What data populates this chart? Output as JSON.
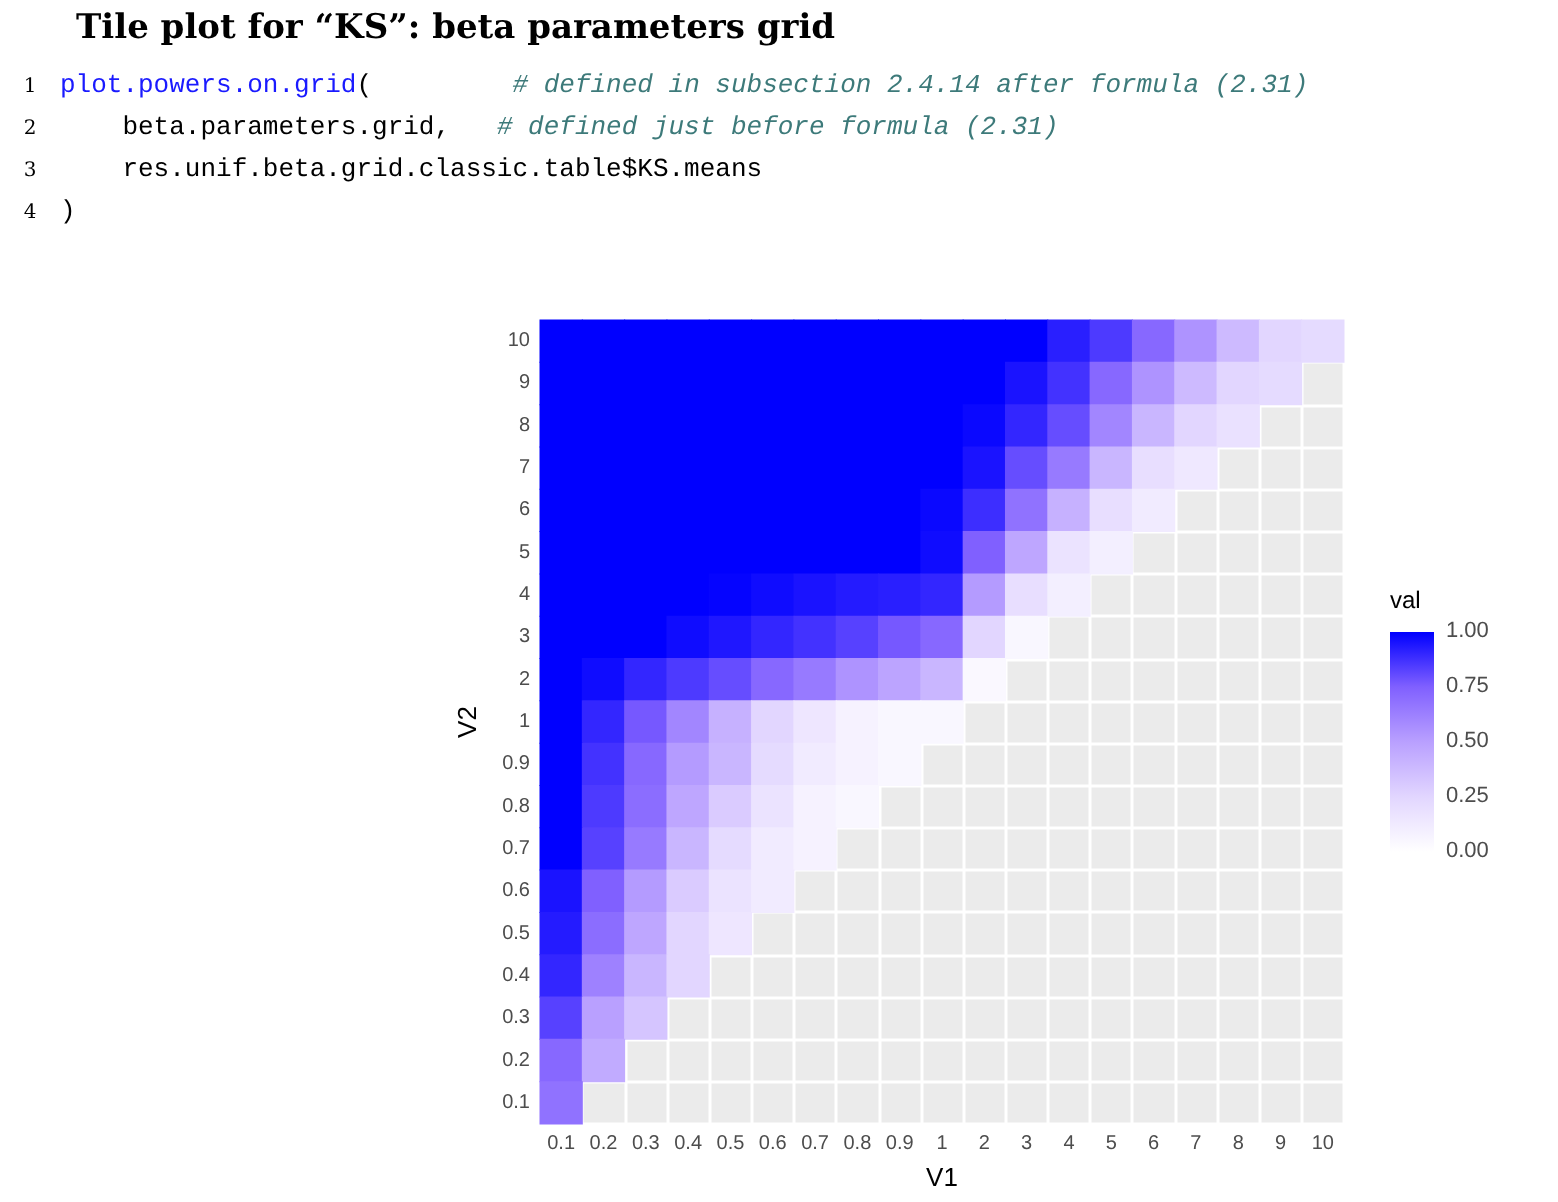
{
  "chart_data": {
    "type": "heatmap",
    "title": "Tile plot for “KS”: beta parameters grid",
    "annotations": [
      "1 plot.powers.on.grid(         # defined in subsection 2.4.14 after formula (2.31)",
      "2     beta.parameters.grid,   # defined just before formula (2.31)",
      "3     res.unif.beta.grid.classic.table$KS.means",
      "4 )"
    ],
    "xlabel": "V1",
    "ylabel": "V2",
    "legend_title": "val",
    "grid": true,
    "categories": [
      "0.1",
      "0.2",
      "0.3",
      "0.4",
      "0.5",
      "0.6",
      "0.7",
      "0.8",
      "0.9",
      "1",
      "2",
      "3",
      "4",
      "5",
      "6",
      "7",
      "8",
      "9",
      "10"
    ],
    "y_categories": [
      "10",
      "9",
      "8",
      "7",
      "6",
      "5",
      "4",
      "3",
      "2",
      "1",
      "0.9",
      "0.8",
      "0.7",
      "0.6",
      "0.5",
      "0.4",
      "0.3",
      "0.2",
      "0.1"
    ],
    "cells": [
      [
        1,
        1,
        1,
        1,
        1,
        1,
        1,
        1,
        1,
        1,
        1,
        1,
        0.92,
        0.85,
        0.72,
        0.55,
        0.38,
        0.25,
        0.22
      ],
      [
        1,
        1,
        1,
        1,
        1,
        1,
        1,
        1,
        1,
        1,
        1,
        0.95,
        0.87,
        0.72,
        0.55,
        0.38,
        0.25,
        0.22,
        null
      ],
      [
        1,
        1,
        1,
        1,
        1,
        1,
        1,
        1,
        1,
        1,
        0.98,
        0.9,
        0.8,
        0.6,
        0.4,
        0.25,
        0.18,
        null,
        null
      ],
      [
        1,
        1,
        1,
        1,
        1,
        1,
        1,
        1,
        1,
        1,
        0.95,
        0.8,
        0.65,
        0.4,
        0.2,
        0.14,
        null,
        null,
        null
      ],
      [
        1,
        1,
        1,
        1,
        1,
        1,
        1,
        1,
        1,
        0.98,
        0.88,
        0.68,
        0.42,
        0.2,
        0.12,
        null,
        null,
        null,
        null
      ],
      [
        1,
        1,
        1,
        1,
        1,
        1,
        1,
        1,
        1,
        0.97,
        0.75,
        0.47,
        0.17,
        0.1,
        null,
        null,
        null,
        null,
        null
      ],
      [
        1,
        1,
        1,
        1,
        0.99,
        0.97,
        0.95,
        0.93,
        0.92,
        0.9,
        0.52,
        0.2,
        0.1,
        null,
        null,
        null,
        null,
        null,
        null
      ],
      [
        1,
        1,
        1,
        0.97,
        0.94,
        0.9,
        0.87,
        0.83,
        0.77,
        0.72,
        0.25,
        0.05,
        null,
        null,
        null,
        null,
        null,
        null,
        null
      ],
      [
        1,
        0.97,
        0.9,
        0.85,
        0.8,
        0.72,
        0.65,
        0.55,
        0.48,
        0.4,
        0.04,
        null,
        null,
        null,
        null,
        null,
        null,
        null,
        null
      ],
      [
        1,
        0.9,
        0.77,
        0.6,
        0.42,
        0.25,
        0.15,
        0.08,
        0.05,
        0.05,
        null,
        null,
        null,
        null,
        null,
        null,
        null,
        null,
        null
      ],
      [
        1,
        0.87,
        0.72,
        0.52,
        0.4,
        0.22,
        0.12,
        0.08,
        0.05,
        null,
        null,
        null,
        null,
        null,
        null,
        null,
        null,
        null,
        null
      ],
      [
        1,
        0.85,
        0.7,
        0.47,
        0.3,
        0.17,
        0.08,
        0.05,
        null,
        null,
        null,
        null,
        null,
        null,
        null,
        null,
        null,
        null,
        null
      ],
      [
        1,
        0.83,
        0.65,
        0.4,
        0.22,
        0.12,
        0.08,
        null,
        null,
        null,
        null,
        null,
        null,
        null,
        null,
        null,
        null,
        null,
        null
      ],
      [
        0.95,
        0.75,
        0.52,
        0.3,
        0.17,
        0.12,
        null,
        null,
        null,
        null,
        null,
        null,
        null,
        null,
        null,
        null,
        null,
        null,
        null
      ],
      [
        0.93,
        0.7,
        0.47,
        0.25,
        0.15,
        null,
        null,
        null,
        null,
        null,
        null,
        null,
        null,
        null,
        null,
        null,
        null,
        null,
        null
      ],
      [
        0.9,
        0.62,
        0.4,
        0.25,
        null,
        null,
        null,
        null,
        null,
        null,
        null,
        null,
        null,
        null,
        null,
        null,
        null,
        null,
        null
      ],
      [
        0.83,
        0.5,
        0.33,
        null,
        null,
        null,
        null,
        null,
        null,
        null,
        null,
        null,
        null,
        null,
        null,
        null,
        null,
        null,
        null
      ],
      [
        0.72,
        0.45,
        null,
        null,
        null,
        null,
        null,
        null,
        null,
        null,
        null,
        null,
        null,
        null,
        null,
        null,
        null,
        null,
        null
      ],
      [
        0.68,
        null,
        null,
        null,
        null,
        null,
        null,
        null,
        null,
        null,
        null,
        null,
        null,
        null,
        null,
        null,
        null,
        null,
        null
      ]
    ],
    "clim": [
      0,
      1
    ],
    "cticks": [
      {
        "value": 0,
        "label": "0.00"
      },
      {
        "value": 0.25,
        "label": "0.25"
      },
      {
        "value": 0.5,
        "label": "0.50"
      },
      {
        "value": 0.75,
        "label": "0.75"
      },
      {
        "value": 1,
        "label": "1.00"
      }
    ]
  }
}
